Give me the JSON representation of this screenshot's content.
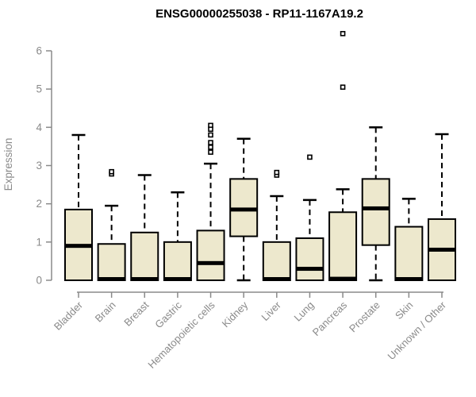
{
  "page": {
    "background": "#ffffff"
  },
  "chart_data": {
    "type": "boxplot",
    "title": "ENSG00000255038 - RP11-1167A19.2",
    "ylabel": "Expression",
    "xlabel": "",
    "ylim": [
      0,
      6.6
    ],
    "yticks": [
      0,
      1,
      2,
      3,
      4,
      5,
      6
    ],
    "grid": false,
    "legend": "none",
    "categories": [
      "Bladder",
      "Brain",
      "Breast",
      "Gastric",
      "Hematopoietic cells",
      "Kidney",
      "Liver",
      "Lung",
      "Pancreas",
      "Prostate",
      "Skin",
      "Unknown / Other"
    ],
    "boxes": [
      {
        "category": "Bladder",
        "whisker_low": 0,
        "q1": 0,
        "median": 0.9,
        "q3": 1.85,
        "whisker_high": 3.8,
        "outliers": []
      },
      {
        "category": "Brain",
        "whisker_low": 0,
        "q1": 0,
        "median": 0.03,
        "q3": 0.95,
        "whisker_high": 1.95,
        "outliers": [
          2.78,
          2.84
        ]
      },
      {
        "category": "Breast",
        "whisker_low": 0,
        "q1": 0,
        "median": 0.03,
        "q3": 1.25,
        "whisker_high": 2.75,
        "outliers": []
      },
      {
        "category": "Gastric",
        "whisker_low": 0,
        "q1": 0,
        "median": 0.03,
        "q3": 1.0,
        "whisker_high": 2.3,
        "outliers": []
      },
      {
        "category": "Hematopoietic cells",
        "whisker_low": 0,
        "q1": 0,
        "median": 0.45,
        "q3": 1.3,
        "whisker_high": 3.05,
        "outliers": [
          4.05,
          3.95,
          3.8,
          3.6,
          3.48,
          3.35
        ]
      },
      {
        "category": "Kidney",
        "whisker_low": 0,
        "q1": 1.15,
        "median": 1.85,
        "q3": 2.65,
        "whisker_high": 3.7,
        "outliers": []
      },
      {
        "category": "Liver",
        "whisker_low": 0,
        "q1": 0,
        "median": 0.03,
        "q3": 1.0,
        "whisker_high": 2.2,
        "outliers": [
          2.75,
          2.82
        ]
      },
      {
        "category": "Lung",
        "whisker_low": 0,
        "q1": 0,
        "median": 0.3,
        "q3": 1.1,
        "whisker_high": 2.1,
        "outliers": [
          3.22
        ]
      },
      {
        "category": "Pancreas",
        "whisker_low": 0,
        "q1": 0,
        "median": 0.04,
        "q3": 1.78,
        "whisker_high": 2.38,
        "outliers": [
          5.05,
          6.45
        ]
      },
      {
        "category": "Prostate",
        "whisker_low": 0,
        "q1": 0.92,
        "median": 1.88,
        "q3": 2.65,
        "whisker_high": 4.0,
        "outliers": []
      },
      {
        "category": "Skin",
        "whisker_low": 0,
        "q1": 0,
        "median": 0.03,
        "q3": 1.4,
        "whisker_high": 2.13,
        "outliers": []
      },
      {
        "category": "Unknown / Other",
        "whisker_low": 0,
        "q1": 0,
        "median": 0.8,
        "q3": 1.6,
        "whisker_high": 3.82,
        "outliers": []
      }
    ],
    "colors": {
      "box_fill": "#ede8cd",
      "box_border": "#000000",
      "median": "#000000",
      "whisker": "#000000",
      "outlier_stroke": "#000000",
      "outlier_fill": "#ffffff",
      "axis": "#8a8a8a",
      "tick_label": "#8a8a8a",
      "title": "#000000"
    }
  }
}
